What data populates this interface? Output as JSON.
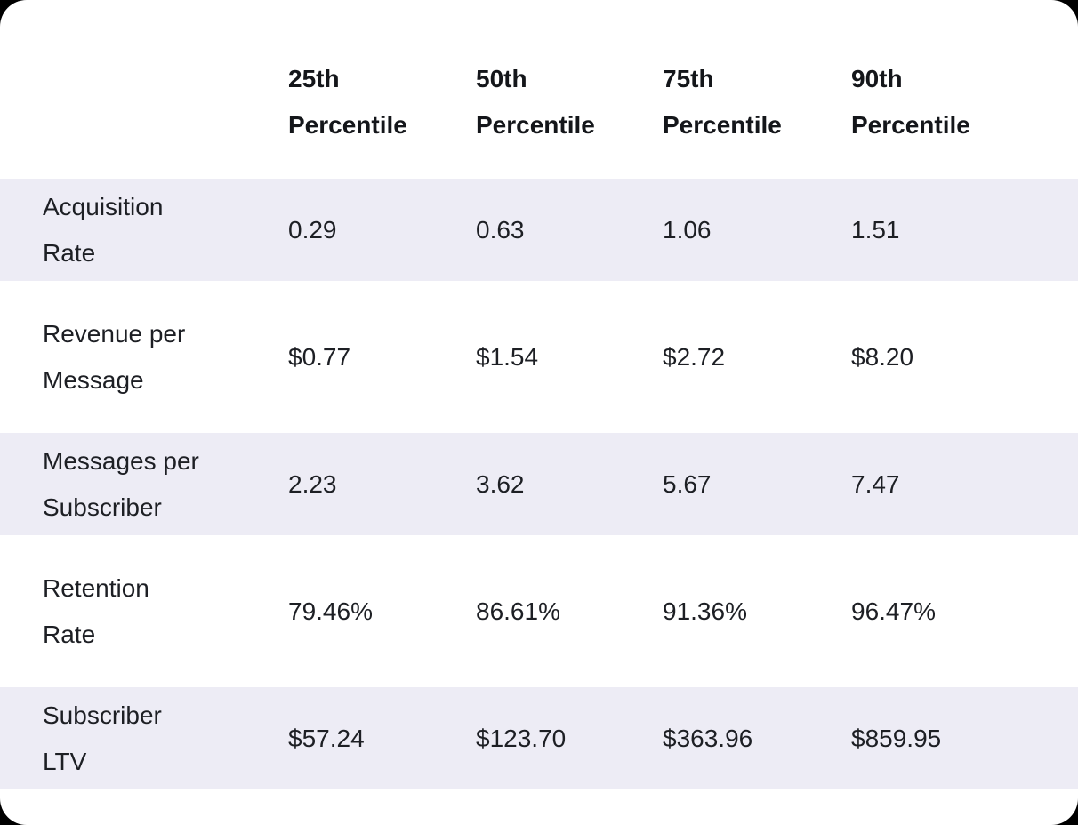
{
  "colors": {
    "page_background": "#000000",
    "card_background": "#ffffff",
    "row_stripe": "#edecf5",
    "header_text": "#14161a",
    "body_text": "#1d1f24"
  },
  "table": {
    "columns": [
      {
        "lines": [
          "25th",
          "Percentile"
        ]
      },
      {
        "lines": [
          "50th",
          "Percentile"
        ]
      },
      {
        "lines": [
          "75th",
          "Percentile"
        ]
      },
      {
        "lines": [
          "90th",
          "Percentile"
        ]
      }
    ],
    "rows": [
      {
        "label_lines": [
          "Acquisition",
          "Rate"
        ],
        "values": [
          "0.29",
          "0.63",
          "1.06",
          "1.51"
        ]
      },
      {
        "label_lines": [
          "Revenue per",
          "Message"
        ],
        "values": [
          "$0.77",
          "$1.54",
          "$2.72",
          "$8.20"
        ]
      },
      {
        "label_lines": [
          "Messages per",
          "Subscriber"
        ],
        "values": [
          "2.23",
          "3.62",
          "5.67",
          "7.47"
        ]
      },
      {
        "label_lines": [
          "Retention",
          "Rate"
        ],
        "values": [
          "79.46%",
          "86.61%",
          "91.36%",
          "96.47%"
        ]
      },
      {
        "label_lines": [
          "Subscriber",
          "LTV"
        ],
        "values": [
          "$57.24",
          "$123.70",
          "$363.96",
          "$859.95"
        ]
      }
    ]
  },
  "chart_data": {
    "type": "table",
    "columns": [
      "",
      "25th Percentile",
      "50th Percentile",
      "75th Percentile",
      "90th Percentile"
    ],
    "rows": [
      [
        "Acquisition Rate",
        "0.29",
        "0.63",
        "1.06",
        "1.51"
      ],
      [
        "Revenue per Message",
        "$0.77",
        "$1.54",
        "$2.72",
        "$8.20"
      ],
      [
        "Messages per Subscriber",
        "2.23",
        "3.62",
        "5.67",
        "7.47"
      ],
      [
        "Retention Rate",
        "79.46%",
        "86.61%",
        "91.36%",
        "96.47%"
      ],
      [
        "Subscriber LTV",
        "$57.24",
        "$123.70",
        "$363.96",
        "$859.95"
      ]
    ]
  }
}
